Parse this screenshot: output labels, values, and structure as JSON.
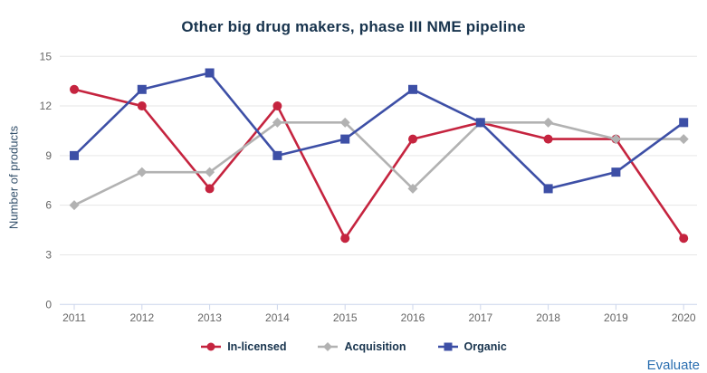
{
  "header": {
    "title": "Other big drug makers, phase III NME pipeline"
  },
  "icons": {
    "context_menu": "hamburger-icon"
  },
  "chart_data": {
    "type": "line",
    "title": "Other big drug makers, phase III NME pipeline",
    "xlabel": "",
    "ylabel": "Number of products",
    "categories": [
      "2011",
      "2012",
      "2013",
      "2014",
      "2015",
      "2016",
      "2017",
      "2018",
      "2019",
      "2020"
    ],
    "ylim": [
      0,
      15
    ],
    "yticks": [
      0,
      3,
      6,
      9,
      12,
      15
    ],
    "grid": true,
    "legend_position": "bottom-center",
    "series": [
      {
        "name": "In-licensed",
        "marker": "circle",
        "color": "#C5243F",
        "values": [
          13,
          12,
          7,
          12,
          4,
          10,
          11,
          10,
          10,
          4
        ]
      },
      {
        "name": "Acquisition",
        "marker": "diamond",
        "color": "#B2B2B2",
        "values": [
          6,
          8,
          8,
          11,
          11,
          7,
          11,
          11,
          10,
          10
        ]
      },
      {
        "name": "Organic",
        "marker": "square",
        "color": "#3D4FA6",
        "values": [
          9,
          13,
          14,
          9,
          10,
          13,
          11,
          7,
          8,
          11
        ]
      }
    ]
  },
  "footer": {
    "brand": "Evaluate"
  },
  "colors": {
    "background": "#FFFFFF",
    "title": "#17334D",
    "axis_title": "#33506B",
    "tick_label": "#666666",
    "gridline": "#E6E6E6",
    "axis_line": "#CCD6EB",
    "legend_text": "#17334D",
    "brand_link": "#2A6EB0",
    "menu_icon": "#616161"
  }
}
